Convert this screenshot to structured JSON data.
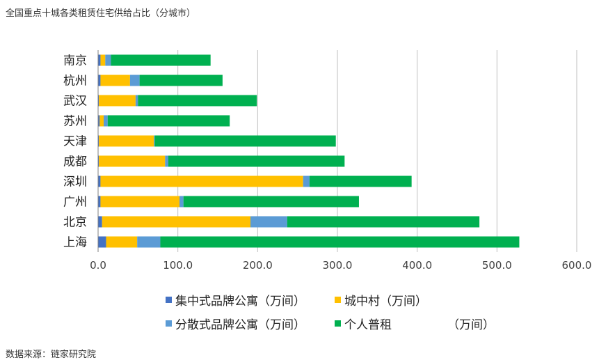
{
  "title": "全国重点十城各类租赁住宅供给占比（分城市）",
  "source": "数据来源：链家研究院",
  "colors": {
    "concentrated": "#4472C4",
    "urban_village": "#FFC000",
    "dispersed": "#5B9BD5",
    "individual": "#00B050",
    "grid": "#BFBFBF",
    "axis": "#7F7F7F"
  },
  "legend": {
    "concentrated": "集中式品牌公寓（万间）",
    "urban_village": "城中村（万间）",
    "dispersed": "分散式品牌公寓（万间）",
    "individual": "个人普租",
    "individual_unit": "（万间）"
  },
  "chart_data": {
    "type": "bar",
    "orientation": "horizontal",
    "stacked": true,
    "title": "全国重点十城各类租赁住宅供给占比（分城市）",
    "xlabel": "",
    "ylabel": "",
    "xlim": [
      0,
      600
    ],
    "xticks": [
      "0.0",
      "100.0",
      "200.0",
      "300.0",
      "400.0",
      "500.0",
      "600.0"
    ],
    "grid": true,
    "legend_position": "bottom",
    "categories": [
      "南京",
      "杭州",
      "武汉",
      "苏州",
      "天津",
      "成都",
      "深圳",
      "广州",
      "北京",
      "上海"
    ],
    "series": [
      {
        "name": "集中式品牌公寓（万间）",
        "key": "concentrated",
        "values": [
          3,
          3,
          1,
          2,
          1,
          1,
          3,
          3,
          5,
          10
        ]
      },
      {
        "name": "城中村（万间）",
        "key": "urban_village",
        "values": [
          6,
          37,
          46,
          5,
          69,
          83,
          254,
          99,
          186,
          39
        ]
      },
      {
        "name": "分散式品牌公寓（万间）",
        "key": "dispersed",
        "values": [
          7,
          12,
          3,
          5,
          1,
          4,
          8,
          5,
          46,
          29
        ]
      },
      {
        "name": "个人普租（万间）",
        "key": "individual",
        "values": [
          125,
          104,
          149,
          153,
          227,
          221,
          128,
          220,
          241,
          450
        ]
      }
    ]
  }
}
